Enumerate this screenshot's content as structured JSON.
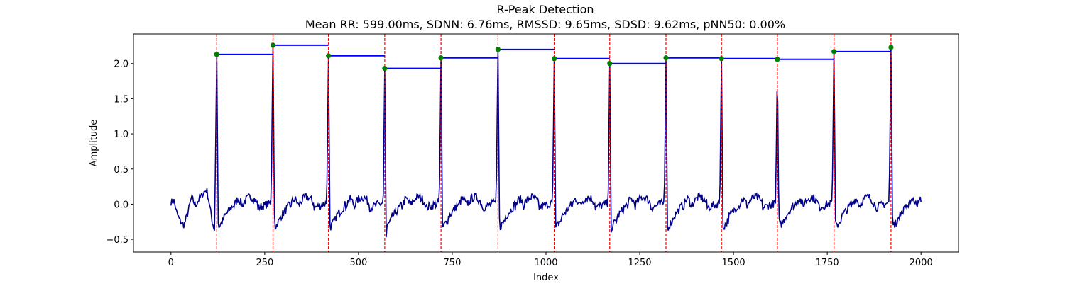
{
  "chart_data": {
    "type": "line",
    "title": "R-Peak Detection",
    "subtitle": "Mean RR: 599.00ms, SDNN: 6.76ms, RMSSD: 9.65ms, SDSD: 9.62ms, pNN50: 0.00%",
    "xlabel": "Index",
    "ylabel": "Amplitude",
    "xlim": [
      -100,
      2100
    ],
    "ylim": [
      -0.68,
      2.42
    ],
    "xticks": [
      0,
      250,
      500,
      750,
      1000,
      1250,
      1500,
      1750,
      2000
    ],
    "yticks": [
      -0.5,
      0.0,
      0.5,
      1.0,
      1.5,
      2.0
    ],
    "grid": false,
    "colors": {
      "signal": "#00008b",
      "peak_marker": "#008000",
      "peak_line": "#ff0000",
      "rr_segment": "#0000ff"
    },
    "r_peaks": [
      {
        "x": 122,
        "y": 2.13
      },
      {
        "x": 272,
        "y": 2.26
      },
      {
        "x": 420,
        "y": 2.11
      },
      {
        "x": 570,
        "y": 1.93
      },
      {
        "x": 720,
        "y": 2.08
      },
      {
        "x": 872,
        "y": 2.2
      },
      {
        "x": 1022,
        "y": 2.07
      },
      {
        "x": 1170,
        "y": 2.0
      },
      {
        "x": 1320,
        "y": 2.08
      },
      {
        "x": 1468,
        "y": 2.07
      },
      {
        "x": 1617,
        "y": 2.06
      },
      {
        "x": 1768,
        "y": 2.17
      },
      {
        "x": 1920,
        "y": 2.23
      }
    ],
    "signal_x_range": [
      0,
      2000
    ],
    "baseline_shape": [
      [
        0,
        0.03
      ],
      [
        8,
        0.05
      ],
      [
        15,
        -0.12
      ],
      [
        25,
        -0.25
      ],
      [
        35,
        -0.3
      ],
      [
        45,
        -0.12
      ],
      [
        55,
        0.1
      ],
      [
        65,
        -0.02
      ],
      [
        75,
        0.07
      ],
      [
        85,
        0.15
      ],
      [
        95,
        0.21
      ],
      [
        102,
        0.02
      ],
      [
        110,
        -0.25
      ],
      [
        118,
        -0.4
      ]
    ]
  }
}
